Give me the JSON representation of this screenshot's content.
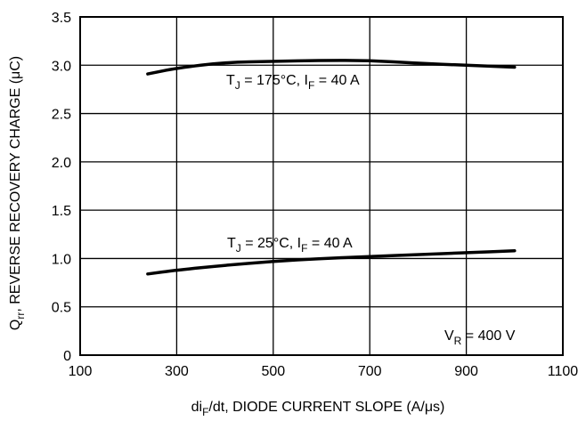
{
  "chart_data": {
    "type": "line",
    "xlabel_parts": [
      "di",
      "F",
      "/dt, DIODE CURRENT SLOPE (A/μs)"
    ],
    "ylabel_parts": [
      "Q",
      "rr",
      ", REVERSE RECOVERY CHARGE (μC)"
    ],
    "xlim": [
      100,
      1100
    ],
    "ylim": [
      0,
      3.5
    ],
    "xticks": [
      100,
      300,
      500,
      700,
      900,
      1100
    ],
    "yticks": [
      0,
      0.5,
      1.0,
      1.5,
      2.0,
      2.5,
      3.0,
      3.5
    ],
    "ytick_labels": [
      "0",
      "0.5",
      "1.0",
      "1.5",
      "2.0",
      "2.5",
      "3.0",
      "3.5"
    ],
    "grid": true,
    "series": [
      {
        "name_parts": [
          "T",
          "J",
          " = 175°C, I",
          "F",
          " = 40 A"
        ],
        "x": [
          240,
          300,
          400,
          500,
          600,
          700,
          800,
          900,
          1000
        ],
        "y": [
          2.91,
          2.97,
          3.03,
          3.04,
          3.05,
          3.05,
          3.02,
          3.0,
          2.98
        ]
      },
      {
        "name_parts": [
          "T",
          "J",
          " = 25°C, I",
          "F",
          " = 40 A"
        ],
        "x": [
          240,
          300,
          400,
          500,
          600,
          700,
          800,
          900,
          1000
        ],
        "y": [
          0.84,
          0.88,
          0.93,
          0.97,
          1.0,
          1.02,
          1.04,
          1.06,
          1.08
        ]
      }
    ],
    "annotation_parts": [
      "V",
      "R",
      " = 400 V"
    ]
  }
}
